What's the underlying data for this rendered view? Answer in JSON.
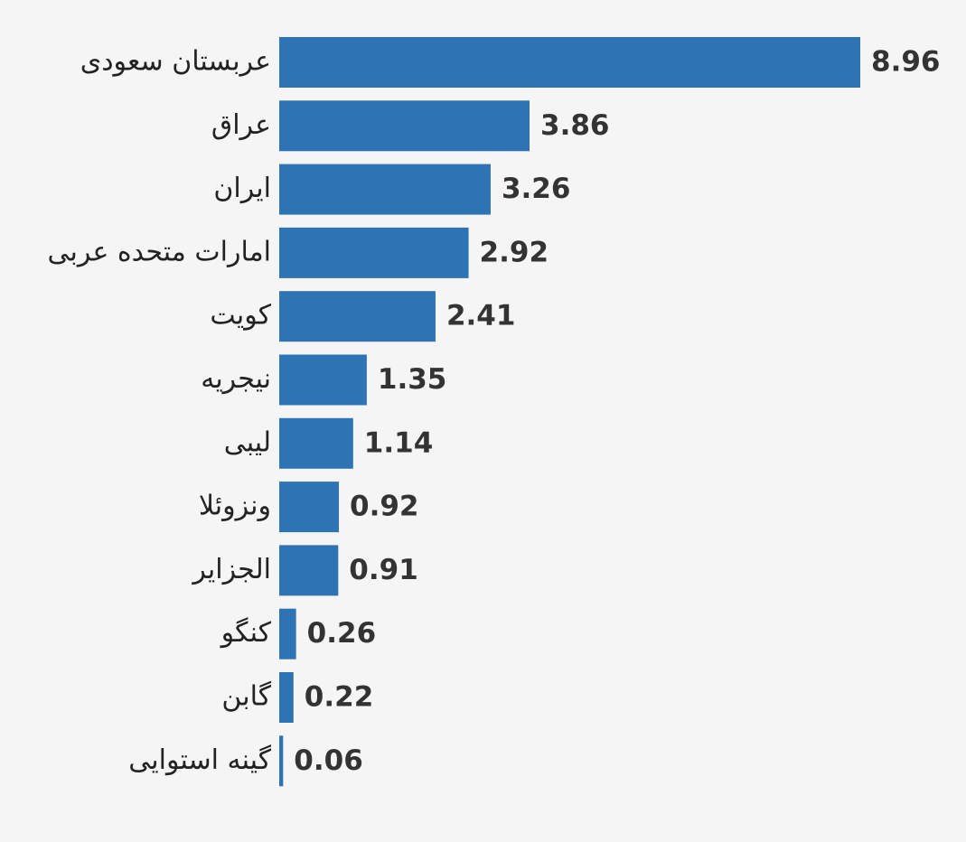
{
  "chart_data": {
    "type": "bar",
    "orientation": "horizontal",
    "categories": [
      "عربستان سعودی",
      "عراق",
      "ایران",
      "امارات متحده عربی",
      "کویت",
      "نیجریه",
      "لیبی",
      "ونزوئلا",
      "الجزایر",
      "کنگو",
      "گابن",
      "گینه استوایی"
    ],
    "values": [
      8.96,
      3.86,
      3.26,
      2.92,
      2.41,
      1.35,
      1.14,
      0.92,
      0.91,
      0.26,
      0.22,
      0.06
    ],
    "color": "#2e74b5"
  }
}
